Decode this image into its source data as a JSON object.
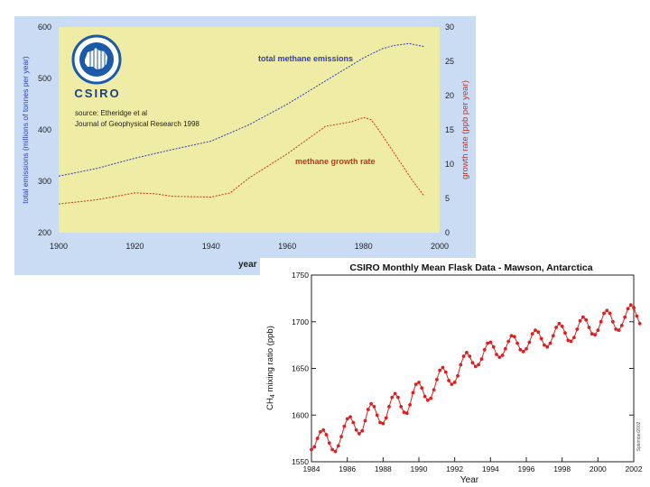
{
  "chart_data": [
    {
      "type": "line",
      "logo": "CSIRO",
      "source": [
        "source: Etheridge et al",
        "Journal of Geophysical Research 1998"
      ],
      "x_label": "year",
      "x_ticks": [
        1900,
        1920,
        1940,
        1960,
        1980,
        2000
      ],
      "xlim": [
        1900,
        2000
      ],
      "y_left": {
        "label": "total emissions (millions of tonnes per year)",
        "ticks": [
          200,
          300,
          400,
          500,
          600
        ],
        "lim": [
          200,
          600
        ]
      },
      "y_right": {
        "label": "growth rate (ppb per year)",
        "ticks": [
          0,
          5,
          10,
          15,
          20,
          25,
          30
        ],
        "lim": [
          0,
          30
        ]
      },
      "series": [
        {
          "name": "total methane emissions",
          "axis": "left",
          "color": "#2b3cc8",
          "x": [
            1900,
            1910,
            1920,
            1930,
            1940,
            1950,
            1960,
            1970,
            1980,
            1985,
            1988,
            1990,
            1992,
            1994,
            1996
          ],
          "values": [
            310,
            325,
            345,
            362,
            378,
            410,
            450,
            495,
            540,
            558,
            564,
            566,
            568,
            565,
            562
          ]
        },
        {
          "name": "methane growth rate",
          "axis": "right",
          "color": "#c8321e",
          "x": [
            1900,
            1910,
            1920,
            1925,
            1930,
            1940,
            1945,
            1950,
            1960,
            1970,
            1977,
            1980,
            1982,
            1984,
            1987,
            1990,
            1993,
            1996
          ],
          "values": [
            4.2,
            4.8,
            5.8,
            5.7,
            5.3,
            5.2,
            5.8,
            8.0,
            11.5,
            15.5,
            16.2,
            16.8,
            16.5,
            15.0,
            12.5,
            10.0,
            7.5,
            5.3
          ]
        }
      ]
    },
    {
      "type": "line",
      "title": "CSIRO Monthly Mean Flask Data - Mawson, Antarctica",
      "xlabel": "Year",
      "ylabel": "CH4 mixing ratio (ppb)",
      "ylabel_parts": [
        "CH",
        "4",
        " mixing ratio (ppb)"
      ],
      "credit": "Sptember2002",
      "x_ticks": [
        1984,
        1986,
        1988,
        1990,
        1992,
        1994,
        1996,
        1998,
        2000,
        2002
      ],
      "y_ticks": [
        1550,
        1600,
        1650,
        1700,
        1750
      ],
      "xlim": [
        1984,
        2002
      ],
      "ylim": [
        1550,
        1750
      ],
      "series": [
        {
          "name": "Mawson monthly mean CH4",
          "color": "#e01e1e",
          "start_year": 1984.0,
          "step_years": 0.1667,
          "values": [
            1563,
            1566,
            1575,
            1582,
            1584,
            1579,
            1570,
            1563,
            1561,
            1567,
            1577,
            1588,
            1596,
            1598,
            1592,
            1584,
            1580,
            1583,
            1594,
            1606,
            1612,
            1609,
            1600,
            1592,
            1591,
            1597,
            1609,
            1619,
            1623,
            1619,
            1609,
            1603,
            1602,
            1611,
            1624,
            1633,
            1635,
            1629,
            1620,
            1616,
            1618,
            1627,
            1638,
            1648,
            1651,
            1646,
            1637,
            1633,
            1635,
            1642,
            1654,
            1663,
            1667,
            1663,
            1656,
            1652,
            1654,
            1660,
            1670,
            1677,
            1678,
            1673,
            1665,
            1662,
            1664,
            1671,
            1679,
            1685,
            1684,
            1677,
            1670,
            1668,
            1671,
            1678,
            1687,
            1691,
            1689,
            1682,
            1675,
            1673,
            1677,
            1685,
            1694,
            1698,
            1695,
            1688,
            1680,
            1679,
            1683,
            1692,
            1701,
            1705,
            1702,
            1694,
            1687,
            1686,
            1691,
            1700,
            1709,
            1712,
            1709,
            1700,
            1692,
            1691,
            1696,
            1705,
            1714,
            1718,
            1715,
            1706,
            1698
          ]
        }
      ]
    }
  ]
}
